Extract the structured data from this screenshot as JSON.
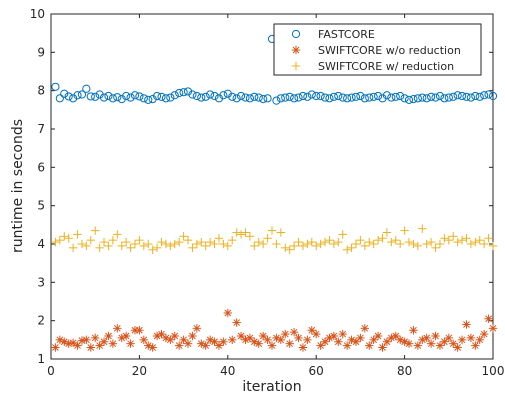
{
  "chart_data": {
    "type": "scatter",
    "title": "",
    "xlabel": "iteration",
    "ylabel": "runtime in seconds",
    "xlim": [
      0,
      100
    ],
    "ylim": [
      1,
      10
    ],
    "xticks": [
      "0",
      "20",
      "40",
      "60",
      "80",
      "100"
    ],
    "yticks": [
      "1",
      "2",
      "3",
      "4",
      "5",
      "6",
      "7",
      "8",
      "9",
      "10"
    ],
    "grid": false,
    "legend_position": "top-right",
    "x": [
      1,
      2,
      3,
      4,
      5,
      6,
      7,
      8,
      9,
      10,
      11,
      12,
      13,
      14,
      15,
      16,
      17,
      18,
      19,
      20,
      21,
      22,
      23,
      24,
      25,
      26,
      27,
      28,
      29,
      30,
      31,
      32,
      33,
      34,
      35,
      36,
      37,
      38,
      39,
      40,
      41,
      42,
      43,
      44,
      45,
      46,
      47,
      48,
      49,
      50,
      51,
      52,
      53,
      54,
      55,
      56,
      57,
      58,
      59,
      60,
      61,
      62,
      63,
      64,
      65,
      66,
      67,
      68,
      69,
      70,
      71,
      72,
      73,
      74,
      75,
      76,
      77,
      78,
      79,
      80,
      81,
      82,
      83,
      84,
      85,
      86,
      87,
      88,
      89,
      90,
      91,
      92,
      93,
      94,
      95,
      96,
      97,
      98,
      99,
      100
    ],
    "series": [
      {
        "name": "FASTCORE",
        "marker": "circle",
        "color": "#0072BD",
        "values": [
          8.1,
          7.8,
          7.92,
          7.85,
          7.8,
          7.88,
          7.9,
          8.05,
          7.85,
          7.84,
          7.9,
          7.82,
          7.86,
          7.8,
          7.83,
          7.78,
          7.86,
          7.82,
          7.88,
          7.85,
          7.8,
          7.76,
          7.78,
          7.86,
          7.84,
          7.8,
          7.82,
          7.88,
          7.94,
          7.96,
          7.98,
          7.9,
          7.86,
          7.82,
          7.84,
          7.9,
          7.86,
          7.8,
          7.88,
          7.92,
          7.84,
          7.8,
          7.86,
          7.82,
          7.8,
          7.84,
          7.82,
          7.78,
          7.8,
          9.35,
          7.74,
          7.8,
          7.82,
          7.84,
          7.8,
          7.82,
          7.86,
          7.84,
          7.9,
          7.86,
          7.86,
          7.82,
          7.8,
          7.84,
          7.86,
          7.82,
          7.8,
          7.82,
          7.84,
          7.86,
          7.8,
          7.82,
          7.84,
          7.86,
          7.8,
          7.88,
          7.82,
          7.84,
          7.86,
          7.8,
          7.76,
          7.78,
          7.8,
          7.82,
          7.8,
          7.84,
          7.82,
          7.86,
          7.8,
          7.82,
          7.84,
          7.88,
          7.86,
          7.84,
          7.82,
          7.86,
          7.84,
          7.88,
          7.9,
          7.86
        ]
      },
      {
        "name": "SWIFTCORE w/o reduction",
        "marker": "asterisk",
        "color": "#D95319",
        "values": [
          1.3,
          1.5,
          1.45,
          1.4,
          1.42,
          1.35,
          1.48,
          1.5,
          1.3,
          1.55,
          1.35,
          1.45,
          1.6,
          1.4,
          1.8,
          1.55,
          1.6,
          1.4,
          1.75,
          1.75,
          1.5,
          1.35,
          1.3,
          1.6,
          1.65,
          1.55,
          1.5,
          1.6,
          1.35,
          1.5,
          1.4,
          1.6,
          1.8,
          1.4,
          1.35,
          1.5,
          1.45,
          1.35,
          1.45,
          2.2,
          1.5,
          1.95,
          1.6,
          1.5,
          1.55,
          1.45,
          1.4,
          1.6,
          1.5,
          1.35,
          1.55,
          1.5,
          1.65,
          1.4,
          1.7,
          1.55,
          1.3,
          1.5,
          1.75,
          1.65,
          1.35,
          1.45,
          1.55,
          1.6,
          1.45,
          1.65,
          1.35,
          1.5,
          1.45,
          1.55,
          1.8,
          1.35,
          1.5,
          1.6,
          1.3,
          1.45,
          1.55,
          1.6,
          1.5,
          1.45,
          1.4,
          1.75,
          1.35,
          1.5,
          1.55,
          1.4,
          1.6,
          1.35,
          1.45,
          1.55,
          1.4,
          1.3,
          1.5,
          1.9,
          1.55,
          1.35,
          1.5,
          1.65,
          2.05,
          1.8
        ]
      },
      {
        "name": "SWIFTCORE w/ reduction",
        "marker": "plus",
        "color": "#EDB120",
        "values": [
          4.05,
          4.1,
          4.2,
          4.15,
          3.9,
          4.25,
          4.0,
          3.95,
          4.1,
          4.35,
          3.9,
          4.05,
          3.95,
          4.1,
          4.25,
          3.95,
          4.05,
          3.9,
          4.0,
          4.1,
          3.95,
          4.0,
          3.85,
          3.9,
          4.05,
          4.0,
          3.95,
          4.0,
          4.05,
          4.2,
          4.1,
          3.9,
          4.0,
          4.05,
          3.95,
          4.05,
          4.0,
          4.15,
          4.0,
          3.95,
          4.1,
          4.3,
          4.25,
          4.3,
          4.2,
          3.95,
          4.05,
          4.0,
          4.15,
          4.35,
          4.0,
          4.3,
          3.9,
          3.85,
          3.95,
          4.05,
          3.95,
          4.0,
          4.05,
          3.95,
          4.0,
          4.05,
          4.1,
          4.0,
          4.05,
          4.25,
          3.85,
          3.9,
          4.0,
          4.1,
          3.95,
          4.05,
          4.0,
          4.1,
          4.15,
          4.3,
          4.05,
          4.1,
          4.0,
          4.35,
          4.05,
          4.0,
          3.95,
          4.4,
          4.0,
          4.05,
          3.9,
          4.0,
          4.15,
          4.1,
          4.2,
          4.05,
          4.1,
          4.15,
          4.0,
          4.05,
          4.1,
          4.0,
          4.15,
          3.95
        ]
      }
    ]
  }
}
